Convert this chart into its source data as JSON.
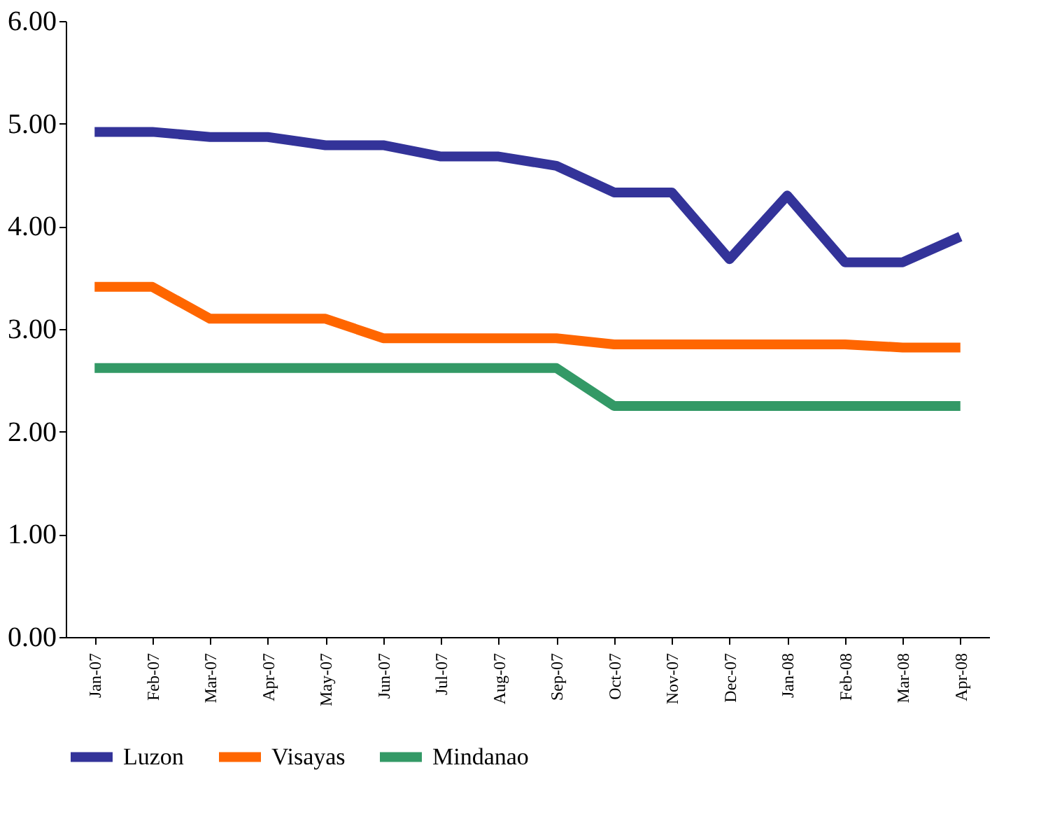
{
  "chart_data": {
    "type": "line",
    "categories": [
      "Jan-07",
      "Feb-07",
      "Mar-07",
      "Apr-07",
      "May-07",
      "Jun-07",
      "Jul-07",
      "Aug-07",
      "Sep-07",
      "Oct-07",
      "Nov-07",
      "Dec-07",
      "Jan-08",
      "Feb-08",
      "Mar-08",
      "Apr-08"
    ],
    "series": [
      {
        "name": "Luzon",
        "color": "#333399",
        "values": [
          4.92,
          4.92,
          4.87,
          4.87,
          4.79,
          4.79,
          4.68,
          4.68,
          4.59,
          4.33,
          4.33,
          3.68,
          4.3,
          3.65,
          3.65,
          3.9
        ]
      },
      {
        "name": "Visayas",
        "color": "#ff6600",
        "values": [
          3.41,
          3.41,
          3.1,
          3.1,
          3.1,
          2.91,
          2.91,
          2.91,
          2.91,
          2.85,
          2.85,
          2.85,
          2.85,
          2.85,
          2.82,
          2.82
        ]
      },
      {
        "name": "Mindanao",
        "color": "#339966",
        "values": [
          2.62,
          2.62,
          2.62,
          2.62,
          2.62,
          2.62,
          2.62,
          2.62,
          2.62,
          2.25,
          2.25,
          2.25,
          2.25,
          2.25,
          2.25,
          2.25
        ]
      }
    ],
    "ylim": [
      0,
      6
    ],
    "yticks": [
      {
        "value": 0,
        "label": "0.00"
      },
      {
        "value": 1,
        "label": "1.00"
      },
      {
        "value": 2,
        "label": "2.00"
      },
      {
        "value": 3,
        "label": "3.00"
      },
      {
        "value": 4,
        "label": "4.00"
      },
      {
        "value": 5,
        "label": "5.00"
      },
      {
        "value": 6,
        "label": "6.00"
      }
    ],
    "grid": false,
    "legend": "bottom",
    "marker": "none",
    "line_style": "solid"
  }
}
